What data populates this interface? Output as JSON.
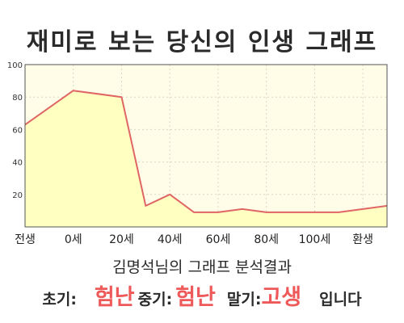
{
  "chart_data": {
    "type": "area",
    "title": "재미로 보는 당신의 인생 그래프",
    "categories": [
      "전생",
      "0세",
      "20세",
      "40세",
      "60세",
      "80세",
      "100세",
      "환생"
    ],
    "x": [
      -10,
      0,
      10,
      15,
      20,
      25,
      30,
      35,
      40,
      45,
      50,
      55,
      60,
      65
    ],
    "values": [
      63,
      84,
      80,
      13,
      20,
      9,
      9,
      11,
      9,
      9,
      9,
      9,
      11,
      13
    ],
    "ylim": [
      0,
      100
    ],
    "yticks": [
      20,
      40,
      60,
      80,
      100
    ],
    "grid": true,
    "colors": {
      "line": "#e06666",
      "fill": "#ffffc2",
      "plot_bg": "#fffde8",
      "grid": "#d8d8c8"
    }
  },
  "summary": {
    "title": "김명석님의 그래프 분석결과",
    "early_label": "초기:",
    "early_value": "험난",
    "mid_label": "중기:",
    "mid_value": "험난",
    "late_label": "말기:",
    "late_value": "고생",
    "suffix": "입니다"
  }
}
